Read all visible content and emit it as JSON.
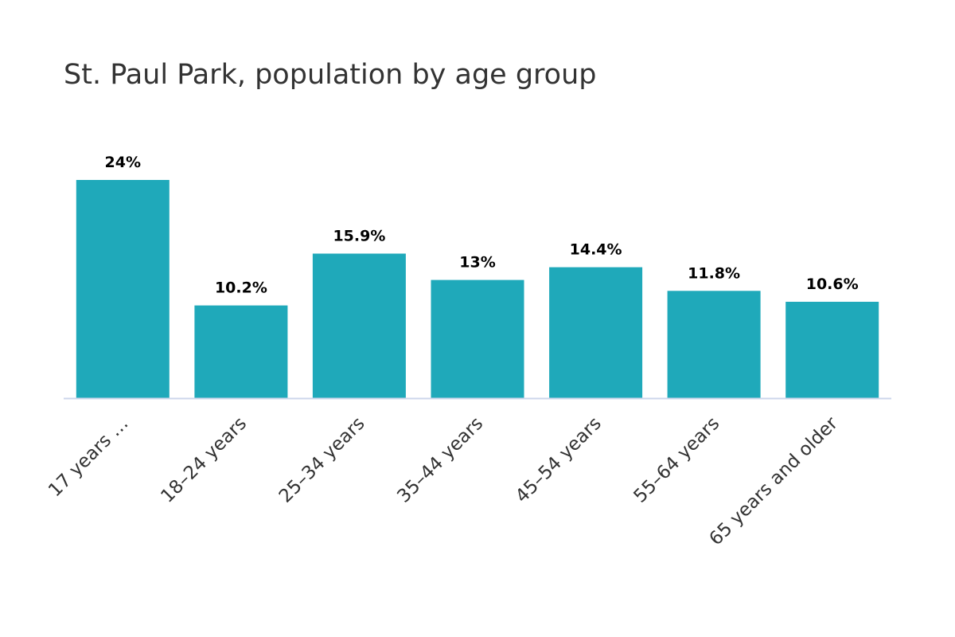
{
  "chart_data": {
    "type": "bar",
    "title": "St. Paul Park, population by age group",
    "categories": [
      "17 years …",
      "18–24 years",
      "25–34 years",
      "35–44 years",
      "45–54 years",
      "55–64 years",
      "65 years and older"
    ],
    "values": [
      24,
      10.2,
      15.9,
      13,
      14.4,
      11.8,
      10.6
    ],
    "data_labels": [
      "24%",
      "10.2%",
      "15.9%",
      "13%",
      "14.4%",
      "11.8%",
      "10.6%"
    ],
    "unit": "%",
    "ylim": [
      0,
      24
    ],
    "grid": false,
    "legend": "none",
    "bar_color": "#1fa9ba",
    "axis_color": "#ccd6eb"
  }
}
